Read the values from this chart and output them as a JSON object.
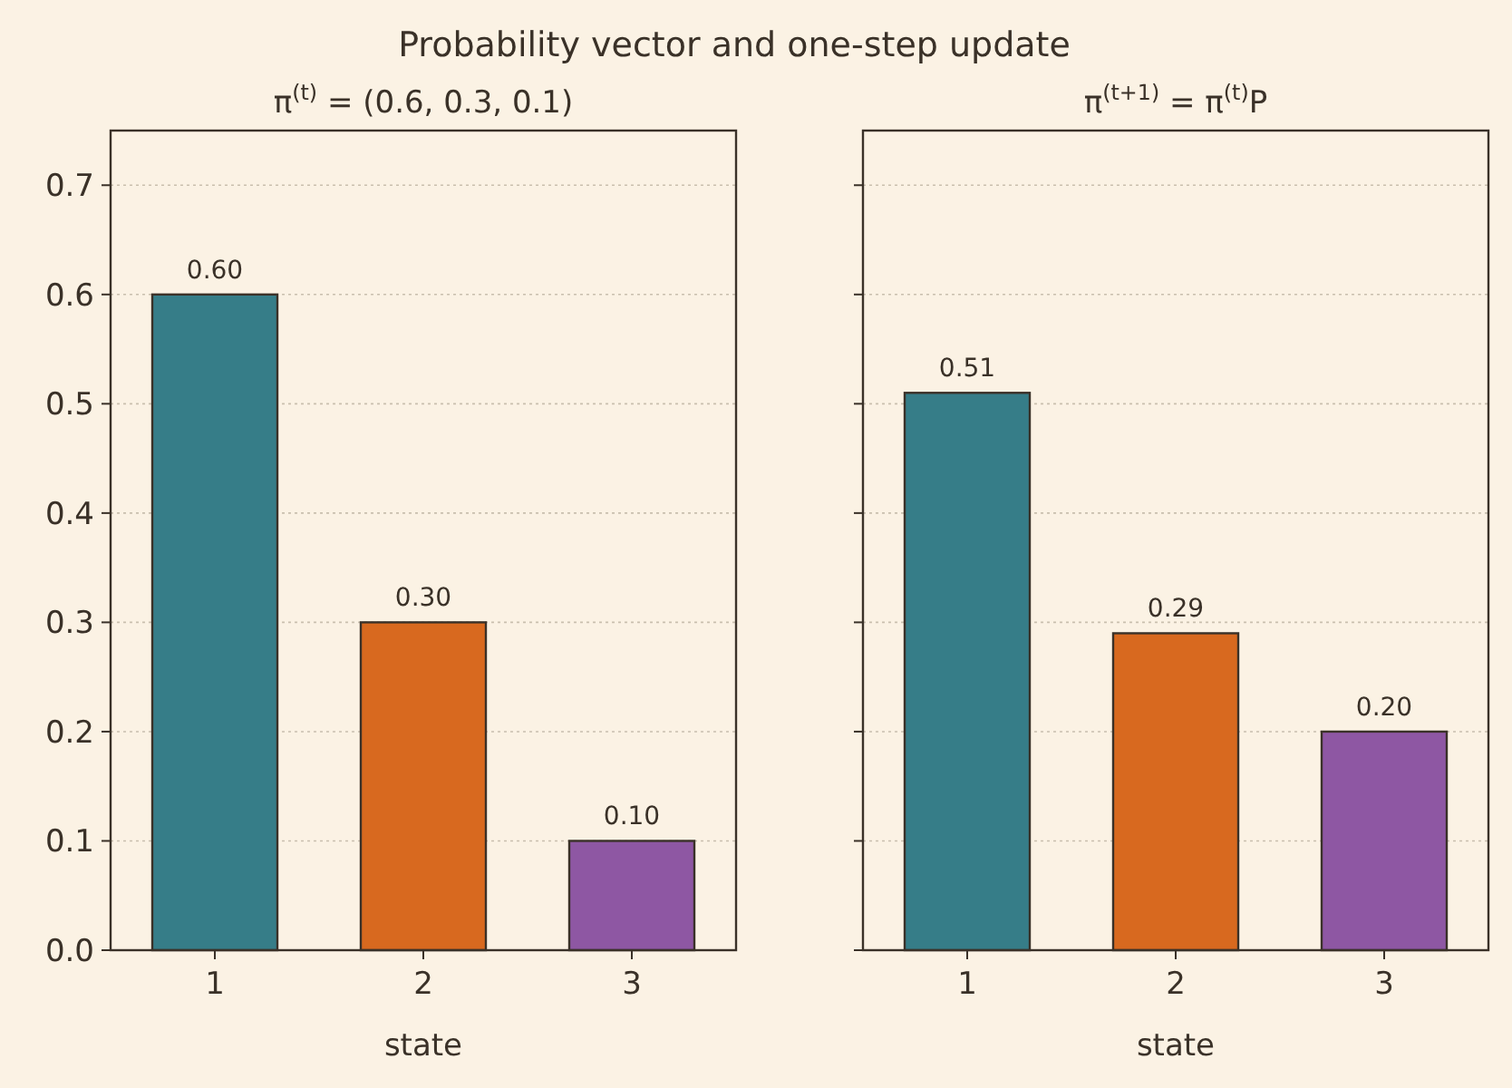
{
  "chart_data": [
    {
      "type": "bar",
      "title": "Probability vector and one-step update",
      "subtitle": "π$^{(t)}$ = (0.6, 0.3, 0.1)",
      "xlabel": "state",
      "categories": [
        "1",
        "2",
        "3"
      ],
      "values": [
        0.6,
        0.3,
        0.1
      ],
      "colors": [
        "#367d88",
        "#d8691f",
        "#8e57a3"
      ],
      "value_labels": [
        "0.60",
        "0.30",
        "0.10"
      ],
      "ylim": [
        0,
        0.75
      ],
      "yticks": [
        {
          "value": 0,
          "label": "0.0"
        },
        {
          "value": 0.1,
          "label": "0.1"
        },
        {
          "value": 0.2,
          "label": "0.2"
        },
        {
          "value": 0.3,
          "label": "0.3"
        },
        {
          "value": 0.4,
          "label": "0.4"
        },
        {
          "value": 0.5,
          "label": "0.5"
        },
        {
          "value": 0.6,
          "label": "0.6"
        },
        {
          "value": 0.7,
          "label": "0.7"
        }
      ],
      "grid": "y"
    },
    {
      "type": "bar",
      "subtitle": "π$^{(t+1)}$ = π$^{(t)}$P",
      "xlabel": "state",
      "categories": [
        "1",
        "2",
        "3"
      ],
      "values": [
        0.51,
        0.29,
        0.2
      ],
      "colors": [
        "#367d88",
        "#d8691f",
        "#8e57a3"
      ],
      "value_labels": [
        "0.51",
        "0.29",
        "0.20"
      ],
      "ylim": [
        0,
        0.75
      ],
      "yticks": [
        {
          "value": 0,
          "label": null
        },
        {
          "value": 0.1,
          "label": null
        },
        {
          "value": 0.2,
          "label": null
        },
        {
          "value": 0.3,
          "label": null
        },
        {
          "value": 0.4,
          "label": null
        },
        {
          "value": 0.5,
          "label": null
        },
        {
          "value": 0.6,
          "label": null
        },
        {
          "value": 0.7,
          "label": null
        }
      ],
      "grid": "y",
      "tick_labels": "x"
    }
  ]
}
